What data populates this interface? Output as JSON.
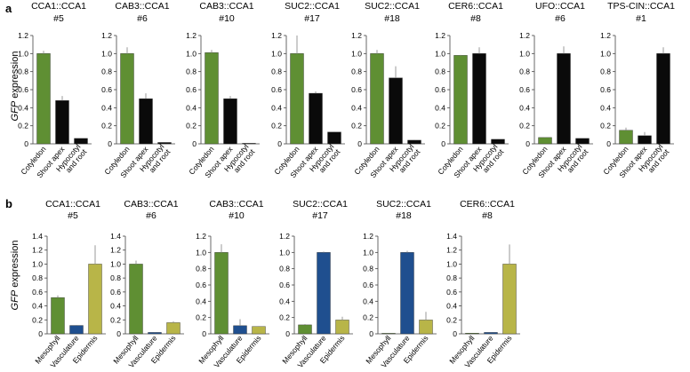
{
  "labels": {
    "row_a": "a",
    "row_b": "b",
    "ylabel_italic": "GFP",
    "ylabel_rest": " expression"
  },
  "colors": {
    "green": "#5f8f33",
    "black": "#0a0a0a",
    "blue": "#1f4f8f",
    "yellow": "#b8b548",
    "error": "#999999",
    "axis": "#444444"
  },
  "chart_data": [
    {
      "panel": "a",
      "type": "bar",
      "title_line1": "CCA1::CCA1",
      "title_line2": "#5",
      "categories": [
        "Cotyledon",
        "Shoot apex",
        "Hypocotyl|and root"
      ],
      "values": [
        1.0,
        0.48,
        0.06
      ],
      "errors": [
        0.03,
        0.05,
        0.005
      ],
      "colors": [
        "green",
        "black",
        "black"
      ],
      "yticks": [
        "0",
        "0.2",
        "0.4",
        "0.6",
        "0.8",
        "1.0",
        "1.2"
      ],
      "ylim": [
        0,
        1.2
      ]
    },
    {
      "panel": "a",
      "type": "bar",
      "title_line1": "CAB3::CCA1",
      "title_line2": "#6",
      "categories": [
        "Cotyledon",
        "Shoot apex",
        "Hypocotyl|and root"
      ],
      "values": [
        1.0,
        0.5,
        0.015
      ],
      "errors": [
        0.07,
        0.06,
        0.005
      ],
      "colors": [
        "green",
        "black",
        "black"
      ],
      "yticks": [
        "0",
        "0.2",
        "0.4",
        "0.6",
        "0.8",
        "1.0",
        "1.2"
      ],
      "ylim": [
        0,
        1.2
      ]
    },
    {
      "panel": "a",
      "type": "bar",
      "title_line1": "CAB3::CCA1",
      "title_line2": "#10",
      "categories": [
        "Cotyledon",
        "Shoot apex",
        "Hypocotyl|and root"
      ],
      "values": [
        1.01,
        0.5,
        0.005
      ],
      "errors": [
        0.03,
        0.03,
        0.002
      ],
      "colors": [
        "green",
        "black",
        "black"
      ],
      "yticks": [
        "0",
        "0.2",
        "0.4",
        "0.6",
        "0.8",
        "1.0",
        "1.2"
      ],
      "ylim": [
        0,
        1.2
      ]
    },
    {
      "panel": "a",
      "type": "bar",
      "title_line1": "SUC2::CCA1",
      "title_line2": "#17",
      "categories": [
        "Cotyledon",
        "Shoot apex",
        "Hypocotyl|and root"
      ],
      "values": [
        1.0,
        0.56,
        0.13
      ],
      "errors": [
        0.2,
        0.02,
        0.005
      ],
      "colors": [
        "green",
        "black",
        "black"
      ],
      "yticks": [
        "0",
        "0.2",
        "0.4",
        "0.6",
        "0.8",
        "1.0",
        "1.2"
      ],
      "ylim": [
        0,
        1.2
      ]
    },
    {
      "panel": "a",
      "type": "bar",
      "title_line1": "SUC2::CCA1",
      "title_line2": "#18",
      "categories": [
        "Cotyledon",
        "Shoot apex",
        "Hypocotyl|and root"
      ],
      "values": [
        1.0,
        0.73,
        0.04
      ],
      "errors": [
        0.04,
        0.13,
        0.005
      ],
      "colors": [
        "green",
        "black",
        "black"
      ],
      "yticks": [
        "0",
        "0.2",
        "0.4",
        "0.6",
        "0.8",
        "1.0",
        "1.2"
      ],
      "ylim": [
        0,
        1.2
      ]
    },
    {
      "panel": "a",
      "type": "bar",
      "title_line1": "CER6::CCA1",
      "title_line2": "#8",
      "categories": [
        "Cotyledon",
        "Shoot apex",
        "Hypocotyl|and root"
      ],
      "values": [
        0.98,
        1.0,
        0.05
      ],
      "errors": [
        0.005,
        0.07,
        0.005
      ],
      "colors": [
        "green",
        "black",
        "black"
      ],
      "yticks": [
        "0",
        "0.2",
        "0.4",
        "0.6",
        "0.8",
        "1.0",
        "1.2"
      ],
      "ylim": [
        0,
        1.2
      ]
    },
    {
      "panel": "a",
      "type": "bar",
      "title_line1": "UFO::CCA1",
      "title_line2": "#6",
      "categories": [
        "Cotyledon",
        "Shoot apex",
        "Hypocotyl|and root"
      ],
      "values": [
        0.07,
        1.0,
        0.06
      ],
      "errors": [
        0.005,
        0.08,
        0.005
      ],
      "colors": [
        "green",
        "black",
        "black"
      ],
      "yticks": [
        "0",
        "0.2",
        "0.4",
        "0.6",
        "0.8",
        "1.0",
        "1.2"
      ],
      "ylim": [
        0,
        1.2
      ]
    },
    {
      "panel": "a",
      "type": "bar",
      "title_line1": "TPS-CIN::CCA1",
      "title_line2": "#1",
      "categories": [
        "Cotyledon",
        "Shoot apex",
        "Hypocotyl|and root"
      ],
      "values": [
        0.15,
        0.09,
        1.0
      ],
      "errors": [
        0.03,
        0.04,
        0.07
      ],
      "colors": [
        "green",
        "black",
        "black"
      ],
      "yticks": [
        "0",
        "0.2",
        "0.4",
        "0.6",
        "0.8",
        "1.0",
        "1.2"
      ],
      "ylim": [
        0,
        1.2
      ]
    },
    {
      "panel": "b",
      "type": "bar",
      "title_line1": "CCA1::CCA1",
      "title_line2": "#5",
      "categories": [
        "Mesophyll",
        "Vasculature",
        "Epidermis"
      ],
      "values": [
        0.52,
        0.12,
        1.0
      ],
      "errors": [
        0.03,
        0.005,
        0.27
      ],
      "colors": [
        "green",
        "blue",
        "yellow"
      ],
      "yticks": [
        "0",
        "0.2",
        "0.4",
        "0.6",
        "0.8",
        "1.0",
        "1.2",
        "1.4"
      ],
      "ylim": [
        0,
        1.4
      ]
    },
    {
      "panel": "b",
      "type": "bar",
      "title_line1": "CAB3::CCA1",
      "title_line2": "#6",
      "categories": [
        "Mesophyll",
        "Vasculature",
        "Epidermis"
      ],
      "values": [
        1.0,
        0.02,
        0.16
      ],
      "errors": [
        0.05,
        0.005,
        0.02
      ],
      "colors": [
        "green",
        "blue",
        "yellow"
      ],
      "yticks": [
        "0",
        "0.2",
        "0.4",
        "0.6",
        "0.8",
        "1.0",
        "1.2",
        "1.4"
      ],
      "ylim": [
        0,
        1.4
      ]
    },
    {
      "panel": "b",
      "type": "bar",
      "title_line1": "CAB3::CCA1",
      "title_line2": "#10",
      "categories": [
        "Mesophyll",
        "Vasculature",
        "Epidermis"
      ],
      "values": [
        1.0,
        0.1,
        0.09
      ],
      "errors": [
        0.1,
        0.08,
        0.005
      ],
      "colors": [
        "green",
        "blue",
        "yellow"
      ],
      "yticks": [
        "0",
        "0.2",
        "0.4",
        "0.6",
        "0.8",
        "1.0",
        "1.2"
      ],
      "ylim": [
        0,
        1.2
      ]
    },
    {
      "panel": "b",
      "type": "bar",
      "title_line1": "SUC2::CCA1",
      "title_line2": "#17",
      "categories": [
        "Mesophyll",
        "Vasculature",
        "Epidermis"
      ],
      "values": [
        0.11,
        1.0,
        0.17
      ],
      "errors": [
        0.01,
        0.01,
        0.04
      ],
      "colors": [
        "green",
        "blue",
        "yellow"
      ],
      "yticks": [
        "0",
        "0.2",
        "0.4",
        "0.6",
        "0.8",
        "1.0",
        "1.2"
      ],
      "ylim": [
        0,
        1.2
      ]
    },
    {
      "panel": "b",
      "type": "bar",
      "title_line1": "SUC2::CCA1",
      "title_line2": "#18",
      "categories": [
        "Mesophyll",
        "Vasculature",
        "Epidermis"
      ],
      "values": [
        0.005,
        1.0,
        0.17
      ],
      "errors": [
        0.002,
        0.02,
        0.1
      ],
      "colors": [
        "green",
        "blue",
        "yellow"
      ],
      "yticks": [
        "0",
        "0.2",
        "0.4",
        "0.6",
        "0.8",
        "1.0",
        "1.2"
      ],
      "ylim": [
        0,
        1.2
      ]
    },
    {
      "panel": "b",
      "type": "bar",
      "title_line1": "CER6::CCA1",
      "title_line2": "#8",
      "categories": [
        "Mesophyll",
        "Vasculature",
        "Epidermis"
      ],
      "values": [
        0.01,
        0.02,
        1.0
      ],
      "errors": [
        0.002,
        0.005,
        0.28
      ],
      "colors": [
        "green",
        "blue",
        "yellow"
      ],
      "yticks": [
        "0",
        "0.2",
        "0.4",
        "0.6",
        "0.8",
        "1.0",
        "1.2",
        "1.4"
      ],
      "ylim": [
        0,
        1.4
      ]
    }
  ]
}
